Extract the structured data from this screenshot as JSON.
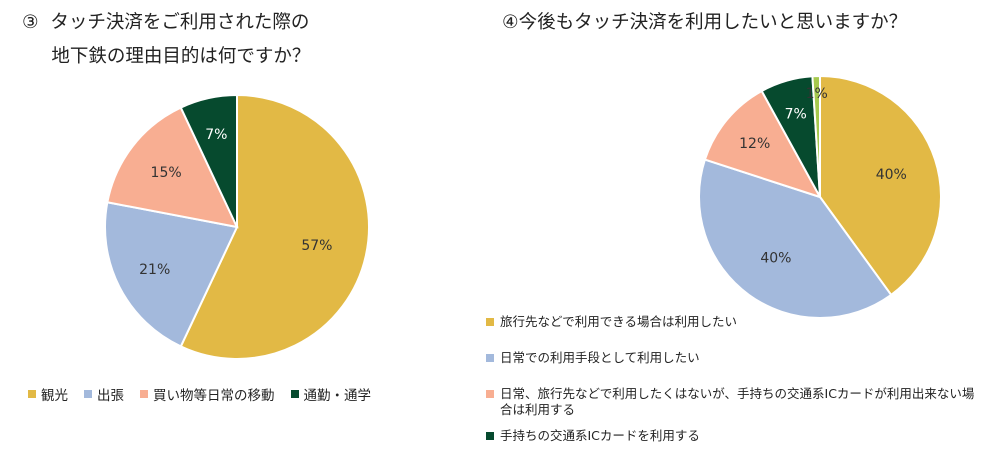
{
  "title1": "③  タッチ決済をご利用された際の\n     地下鉄の理由目的は何ですか？",
  "title2": "④今後もタッチ決済を利用したいと思いますか？",
  "colors": {
    "gold": "#E2B945",
    "blue": "#A3B9DC",
    "salmon": "#F8AE92",
    "darkgreen": "#064A2E",
    "lime": "#A6C94E"
  },
  "chart_data": [
    {
      "type": "pie",
      "title": "③  タッチ決済をご利用された際の地下鉄の理由目的は何ですか？",
      "legend_position": "bottom",
      "slices": [
        {
          "label": "観光",
          "value": 57,
          "display": "57%",
          "color": "#E2B945"
        },
        {
          "label": "出張",
          "value": 21,
          "display": "21%",
          "color": "#A3B9DC"
        },
        {
          "label": "買い物等日常の移動",
          "value": 15,
          "display": "15%",
          "color": "#F8AE92"
        },
        {
          "label": "通勤・通学",
          "value": 7,
          "display": "7%",
          "color": "#064A2E"
        }
      ]
    },
    {
      "type": "pie",
      "title": "④今後もタッチ決済を利用したいと思いますか？",
      "legend_position": "bottom-left",
      "slices": [
        {
          "label": "旅行先などで利用できる場合は利用したい",
          "value": 40,
          "display": "40%",
          "color": "#E2B945"
        },
        {
          "label": "日常での利用手段として利用したい",
          "value": 40,
          "display": "40%",
          "color": "#A3B9DC"
        },
        {
          "label": "日常、旅行先などで利用したくはないが、手持ちの交通系ICカードが利用出来ない場合は利用する",
          "value": 12,
          "display": "12%",
          "color": "#F8AE92"
        },
        {
          "label": "手持ちの交通系ICカードを利用する",
          "value": 7,
          "display": "7%",
          "color": "#064A2E"
        },
        {
          "label": "",
          "value": 1,
          "display": "1%",
          "color": "#A6C94E"
        }
      ]
    }
  ]
}
